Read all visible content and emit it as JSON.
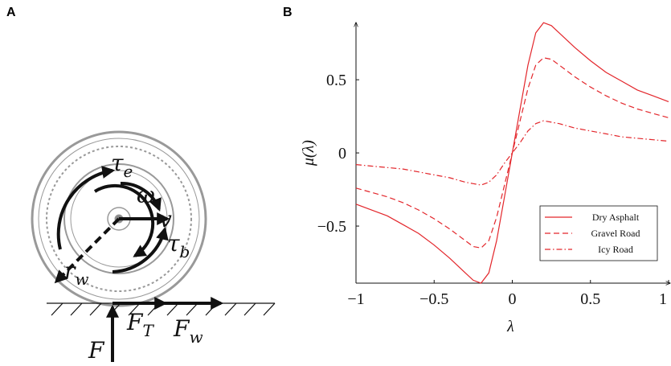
{
  "panel_labels": [
    "A",
    "B"
  ],
  "diagram": {
    "labels": [
      {
        "main": "τ",
        "sub": "e"
      },
      {
        "main": "ω",
        "sub": null
      },
      {
        "main": "v",
        "sub": null
      },
      {
        "main": "τ",
        "sub": "b"
      },
      {
        "main": "r",
        "sub": "w"
      },
      {
        "main": "F",
        "sub": "T"
      },
      {
        "main": "F",
        "sub": "w"
      },
      {
        "main": "F",
        "sub": null
      }
    ]
  },
  "chart_data": {
    "type": "line",
    "xlabel": "λ",
    "ylabel": "μ(λ)",
    "x": [
      -1,
      -0.9,
      -0.8,
      -0.7,
      -0.6,
      -0.5,
      -0.4,
      -0.3,
      -0.25,
      -0.2,
      -0.15,
      -0.1,
      -0.05,
      0,
      0.05,
      0.1,
      0.15,
      0.2,
      0.25,
      0.3,
      0.4,
      0.5,
      0.6,
      0.7,
      0.8,
      0.9,
      1
    ],
    "series": [
      {
        "name": "Dry Asphalt",
        "color": "#e3262b",
        "dash": "solid",
        "values": [
          -0.35,
          -0.39,
          -0.43,
          -0.49,
          -0.55,
          -0.63,
          -0.72,
          -0.82,
          -0.87,
          -0.89,
          -0.82,
          -0.6,
          -0.3,
          0,
          0.3,
          0.6,
          0.82,
          0.89,
          0.87,
          0.82,
          0.72,
          0.63,
          0.55,
          0.49,
          0.43,
          0.39,
          0.35
        ]
      },
      {
        "name": "Gravel Road",
        "color": "#e3262b",
        "dash": "dashed",
        "values": [
          -0.24,
          -0.27,
          -0.3,
          -0.34,
          -0.39,
          -0.45,
          -0.52,
          -0.6,
          -0.64,
          -0.65,
          -0.6,
          -0.44,
          -0.22,
          0,
          0.22,
          0.44,
          0.6,
          0.65,
          0.64,
          0.6,
          0.52,
          0.45,
          0.39,
          0.34,
          0.3,
          0.27,
          0.24
        ]
      },
      {
        "name": "Icy Road",
        "color": "#e3262b",
        "dash": "dashdot",
        "values": [
          -0.08,
          -0.09,
          -0.1,
          -0.11,
          -0.13,
          -0.15,
          -0.17,
          -0.2,
          -0.21,
          -0.22,
          -0.2,
          -0.15,
          -0.07,
          0,
          0.07,
          0.15,
          0.2,
          0.22,
          0.21,
          0.2,
          0.17,
          0.15,
          0.13,
          0.11,
          0.1,
          0.09,
          0.08
        ]
      }
    ],
    "xlim": [
      -1,
      1
    ],
    "xticks": [
      {
        "value": -1,
        "label": "−1"
      },
      {
        "value": -0.5,
        "label": "−0.5"
      },
      0,
      0.5,
      1
    ],
    "ylim": [
      -0.89,
      0.88
    ],
    "yticks": [
      {
        "value": -0.5,
        "label": "−0.5"
      },
      0,
      0.5
    ],
    "grid": false,
    "legend": "lower right"
  }
}
